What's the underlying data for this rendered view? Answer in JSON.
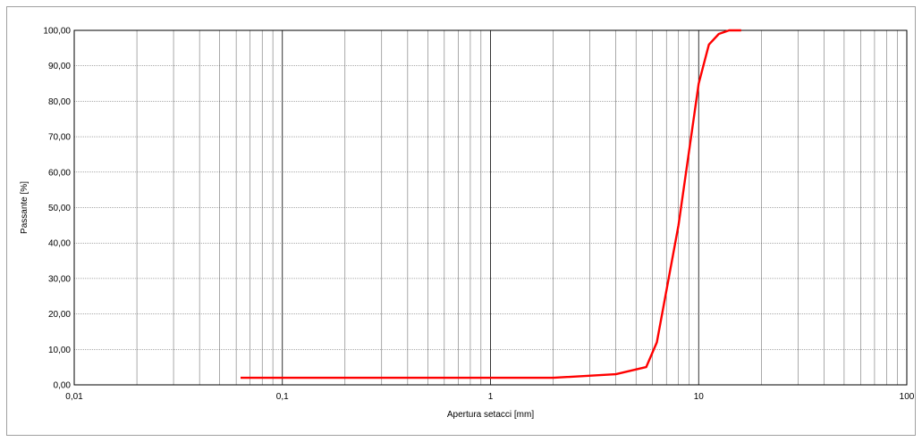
{
  "chart_data": {
    "type": "line",
    "title": "",
    "xlabel": "Apertura setacci [mm]",
    "ylabel": "Passante [%]",
    "x_scale": "log",
    "xlim": [
      0.01,
      100
    ],
    "ylim": [
      0,
      100
    ],
    "grid": true,
    "x_tick_labels": [
      "0,01",
      "0,1",
      "1",
      "10",
      "100"
    ],
    "y_tick_labels": [
      "0,00",
      "10,00",
      "20,00",
      "30,00",
      "40,00",
      "50,00",
      "60,00",
      "70,00",
      "80,00",
      "90,00",
      "100,00"
    ],
    "series": [
      {
        "color": "#ff0000",
        "x": [
          0.063,
          2,
          4,
          5.6,
          6.3,
          8,
          10,
          11.2,
          12.5,
          14,
          16
        ],
        "y": [
          2,
          2,
          3,
          5,
          12,
          45,
          85,
          96,
          99,
          100,
          100
        ]
      }
    ]
  }
}
